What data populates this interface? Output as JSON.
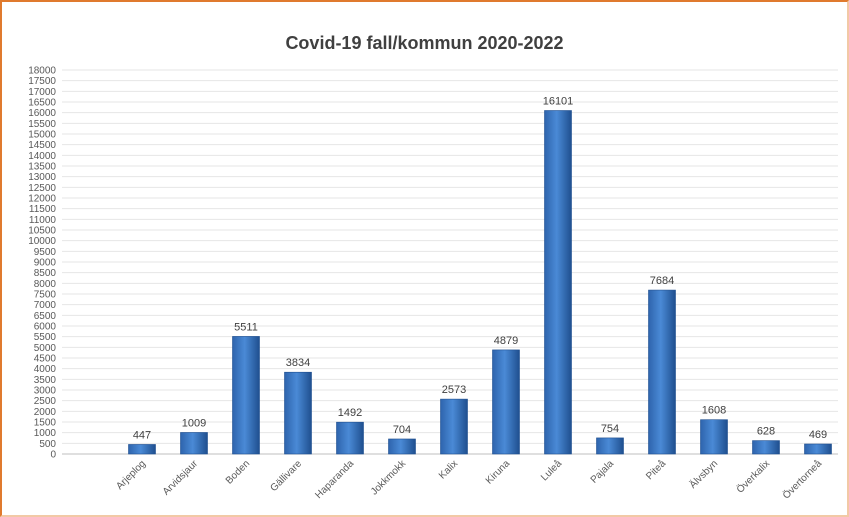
{
  "chart_data": {
    "type": "bar",
    "title": "Covid-19 fall/kommun 2020-2022",
    "xlabel": "",
    "ylabel": "",
    "ylim": [
      0,
      18000
    ],
    "ytick_step": 500,
    "grid": true,
    "legend": "none",
    "categories": [
      "Arjeplog",
      "Arvidsjaur",
      "Boden",
      "Gällivare",
      "Haparanda",
      "Jokkmokk",
      "Kalix",
      "Kiruna",
      "Luleå",
      "Pajala",
      "Piteå",
      "Älvsbyn",
      "Överkalix",
      "Övertorneå"
    ],
    "values": [
      447,
      1009,
      5511,
      3834,
      1492,
      704,
      2573,
      4879,
      16101,
      754,
      7684,
      1608,
      628,
      469
    ],
    "colors": {
      "bar": "#3a78c6",
      "bar_dark": "#1f4f8f",
      "grid": "#e6e6e6",
      "axis": "#bfbfbf"
    }
  }
}
